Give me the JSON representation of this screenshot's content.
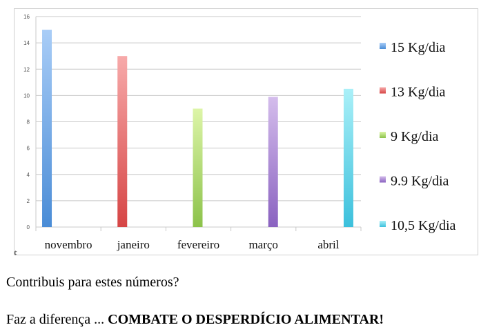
{
  "chart_data": {
    "type": "bar",
    "categories": [
      "novembro",
      "janeiro",
      "fevereiro",
      "março",
      "abril"
    ],
    "values": [
      15,
      13,
      9,
      9.9,
      10.5
    ],
    "ylim": [
      0,
      16
    ],
    "yticks": [
      0,
      2,
      4,
      6,
      8,
      10,
      12,
      14,
      16
    ],
    "grid": true,
    "legend_position": "right",
    "legend": [
      "15 Kg/dia",
      "13 Kg/dia",
      "9 Kg/dia",
      "9.9 Kg/dia",
      "10,5 Kg/dia"
    ],
    "colors": [
      {
        "light": "#a9cdf7",
        "dark": "#4a8cd6"
      },
      {
        "light": "#f7aaaa",
        "dark": "#d64545"
      },
      {
        "light": "#ddf5a8",
        "dark": "#8cc24a"
      },
      {
        "light": "#d4bdec",
        "dark": "#8a62c0"
      },
      {
        "light": "#aaf0f8",
        "dark": "#3cc0dc"
      }
    ]
  },
  "stray_mark": "¢",
  "text": {
    "question": "Contribuis para estes números?",
    "closing_prefix": "Faz a diferença ... ",
    "closing_emphasis": "COMBATE O DESPERDÍCIO ALIMENTAR!"
  }
}
